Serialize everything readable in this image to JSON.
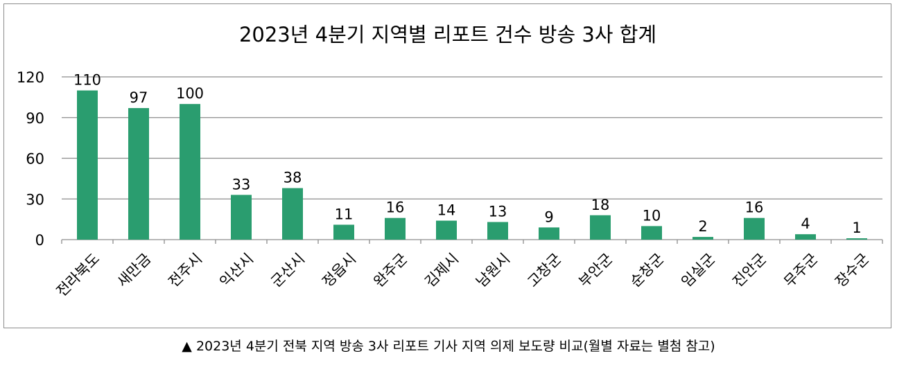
{
  "chart_data": {
    "type": "bar",
    "title": "2023년 4분기 지역별 리포트 건수 방송 3사 합계",
    "categories": [
      "전라북도",
      "새만금",
      "전주시",
      "익산시",
      "군산시",
      "정읍시",
      "완주군",
      "김제시",
      "남원시",
      "고창군",
      "부안군",
      "순창군",
      "임실군",
      "진안군",
      "무주군",
      "장수군"
    ],
    "values": [
      110,
      97,
      100,
      33,
      38,
      11,
      16,
      14,
      13,
      9,
      18,
      10,
      2,
      16,
      4,
      1
    ],
    "value_labels": [
      "110",
      "97",
      "100",
      "33",
      "38",
      "11",
      "16",
      "14",
      "13",
      "9",
      "18",
      "10",
      "2",
      "16",
      "4",
      "1"
    ],
    "ylim": [
      0,
      120
    ],
    "yticks": [
      "0",
      "30",
      "60",
      "90",
      "120"
    ],
    "xlabel": "",
    "ylabel": "",
    "grid": true,
    "bar_color": "#2a9d6f",
    "grid_color": "#8c8c8c"
  },
  "caption": {
    "marker": "▲",
    "text": "2023년 4분기 전북 지역 방송 3사 리포트 기사 지역 의제 보도량 비교(월별 자료는 별첨 참고)"
  }
}
